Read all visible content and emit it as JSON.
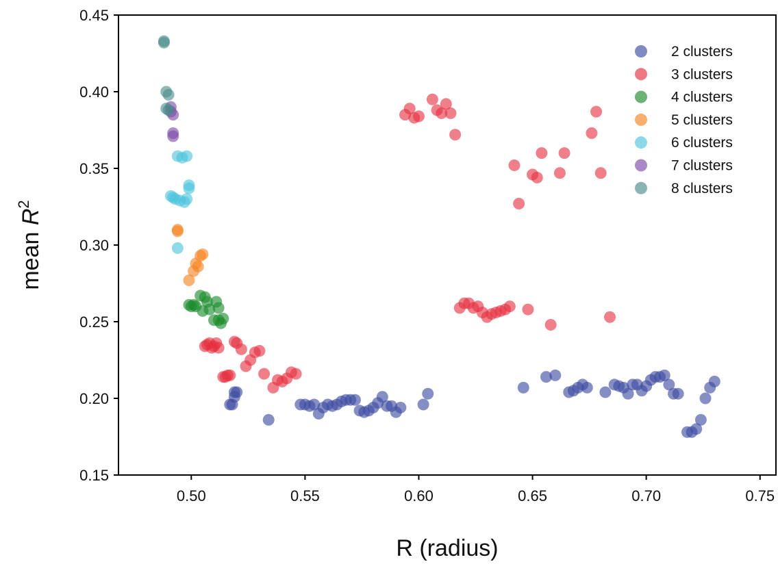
{
  "chart_data": {
    "type": "scatter",
    "title": "",
    "xlabel": "R (radius)",
    "ylabel_main": "mean ",
    "ylabel_var": "R",
    "ylabel_sup": "2",
    "xlim": [
      0.468,
      0.757
    ],
    "ylim": [
      0.15,
      0.45
    ],
    "xticks": [
      0.5,
      0.55,
      0.6,
      0.65,
      0.7,
      0.75
    ],
    "xtick_labels": [
      "0.50",
      "0.55",
      "0.60",
      "0.65",
      "0.70",
      "0.75"
    ],
    "yticks": [
      0.15,
      0.2,
      0.25,
      0.3,
      0.35,
      0.4,
      0.45
    ],
    "ytick_labels": [
      "0.15",
      "0.20",
      "0.25",
      "0.30",
      "0.35",
      "0.40",
      "0.45"
    ],
    "grid": false,
    "legend_position": "top-right",
    "series": [
      {
        "name": "2 clusters",
        "color": "#3b4ba0",
        "points": [
          [
            0.517,
            0.196
          ],
          [
            0.518,
            0.196
          ],
          [
            0.519,
            0.201
          ],
          [
            0.519,
            0.204
          ],
          [
            0.52,
            0.204
          ],
          [
            0.534,
            0.186
          ],
          [
            0.548,
            0.196
          ],
          [
            0.55,
            0.196
          ],
          [
            0.552,
            0.195
          ],
          [
            0.554,
            0.196
          ],
          [
            0.556,
            0.19
          ],
          [
            0.558,
            0.194
          ],
          [
            0.56,
            0.196
          ],
          [
            0.562,
            0.195
          ],
          [
            0.564,
            0.196
          ],
          [
            0.566,
            0.198
          ],
          [
            0.568,
            0.199
          ],
          [
            0.57,
            0.199
          ],
          [
            0.572,
            0.199
          ],
          [
            0.574,
            0.192
          ],
          [
            0.576,
            0.191
          ],
          [
            0.578,
            0.192
          ],
          [
            0.58,
            0.194
          ],
          [
            0.582,
            0.197
          ],
          [
            0.584,
            0.201
          ],
          [
            0.586,
            0.195
          ],
          [
            0.588,
            0.195
          ],
          [
            0.59,
            0.191
          ],
          [
            0.592,
            0.194
          ],
          [
            0.602,
            0.196
          ],
          [
            0.604,
            0.203
          ],
          [
            0.646,
            0.207
          ],
          [
            0.656,
            0.214
          ],
          [
            0.66,
            0.215
          ],
          [
            0.666,
            0.204
          ],
          [
            0.668,
            0.205
          ],
          [
            0.67,
            0.207
          ],
          [
            0.672,
            0.209
          ],
          [
            0.674,
            0.207
          ],
          [
            0.682,
            0.204
          ],
          [
            0.686,
            0.209
          ],
          [
            0.688,
            0.208
          ],
          [
            0.69,
            0.207
          ],
          [
            0.692,
            0.203
          ],
          [
            0.694,
            0.209
          ],
          [
            0.696,
            0.209
          ],
          [
            0.698,
            0.205
          ],
          [
            0.7,
            0.208
          ],
          [
            0.702,
            0.212
          ],
          [
            0.704,
            0.214
          ],
          [
            0.706,
            0.214
          ],
          [
            0.708,
            0.215
          ],
          [
            0.71,
            0.209
          ],
          [
            0.712,
            0.203
          ],
          [
            0.714,
            0.203
          ],
          [
            0.718,
            0.178
          ],
          [
            0.72,
            0.178
          ],
          [
            0.722,
            0.18
          ],
          [
            0.724,
            0.186
          ],
          [
            0.726,
            0.2
          ],
          [
            0.728,
            0.207
          ],
          [
            0.73,
            0.211
          ]
        ]
      },
      {
        "name": "3 clusters",
        "color": "#e53040",
        "points": [
          [
            0.506,
            0.234
          ],
          [
            0.507,
            0.235
          ],
          [
            0.508,
            0.236
          ],
          [
            0.509,
            0.233
          ],
          [
            0.51,
            0.234
          ],
          [
            0.511,
            0.236
          ],
          [
            0.512,
            0.233
          ],
          [
            0.514,
            0.214
          ],
          [
            0.515,
            0.214
          ],
          [
            0.516,
            0.215
          ],
          [
            0.517,
            0.215
          ],
          [
            0.519,
            0.237
          ],
          [
            0.52,
            0.236
          ],
          [
            0.522,
            0.232
          ],
          [
            0.524,
            0.221
          ],
          [
            0.526,
            0.225
          ],
          [
            0.528,
            0.23
          ],
          [
            0.53,
            0.231
          ],
          [
            0.532,
            0.216
          ],
          [
            0.536,
            0.207
          ],
          [
            0.538,
            0.212
          ],
          [
            0.54,
            0.211
          ],
          [
            0.542,
            0.213
          ],
          [
            0.544,
            0.217
          ],
          [
            0.546,
            0.216
          ],
          [
            0.594,
            0.385
          ],
          [
            0.596,
            0.389
          ],
          [
            0.598,
            0.383
          ],
          [
            0.6,
            0.384
          ],
          [
            0.606,
            0.395
          ],
          [
            0.608,
            0.388
          ],
          [
            0.61,
            0.386
          ],
          [
            0.612,
            0.392
          ],
          [
            0.614,
            0.386
          ],
          [
            0.616,
            0.372
          ],
          [
            0.618,
            0.259
          ],
          [
            0.62,
            0.262
          ],
          [
            0.622,
            0.262
          ],
          [
            0.624,
            0.259
          ],
          [
            0.626,
            0.26
          ],
          [
            0.628,
            0.256
          ],
          [
            0.63,
            0.253
          ],
          [
            0.632,
            0.255
          ],
          [
            0.634,
            0.256
          ],
          [
            0.636,
            0.257
          ],
          [
            0.638,
            0.258
          ],
          [
            0.64,
            0.26
          ],
          [
            0.642,
            0.352
          ],
          [
            0.644,
            0.327
          ],
          [
            0.648,
            0.258
          ],
          [
            0.65,
            0.346
          ],
          [
            0.652,
            0.344
          ],
          [
            0.654,
            0.36
          ],
          [
            0.658,
            0.248
          ],
          [
            0.662,
            0.347
          ],
          [
            0.664,
            0.36
          ],
          [
            0.676,
            0.373
          ],
          [
            0.678,
            0.387
          ],
          [
            0.68,
            0.347
          ],
          [
            0.684,
            0.253
          ]
        ]
      },
      {
        "name": "4 clusters",
        "color": "#1a8a2a",
        "points": [
          [
            0.499,
            0.261
          ],
          [
            0.5,
            0.26
          ],
          [
            0.501,
            0.261
          ],
          [
            0.502,
            0.26
          ],
          [
            0.504,
            0.267
          ],
          [
            0.505,
            0.257
          ],
          [
            0.506,
            0.266
          ],
          [
            0.507,
            0.263
          ],
          [
            0.508,
            0.258
          ],
          [
            0.51,
            0.251
          ],
          [
            0.511,
            0.263
          ],
          [
            0.512,
            0.251
          ],
          [
            0.512,
            0.259
          ],
          [
            0.513,
            0.249
          ],
          [
            0.514,
            0.252
          ]
        ]
      },
      {
        "name": "5 clusters",
        "color": "#f58220",
        "points": [
          [
            0.494,
            0.31
          ],
          [
            0.494,
            0.309
          ],
          [
            0.499,
            0.277
          ],
          [
            0.501,
            0.283
          ],
          [
            0.502,
            0.288
          ],
          [
            0.503,
            0.286
          ],
          [
            0.504,
            0.293
          ],
          [
            0.505,
            0.294
          ]
        ]
      },
      {
        "name": "6 clusters",
        "color": "#4cc3dc",
        "points": [
          [
            0.491,
            0.332
          ],
          [
            0.492,
            0.331
          ],
          [
            0.493,
            0.33
          ],
          [
            0.494,
            0.298
          ],
          [
            0.494,
            0.358
          ],
          [
            0.495,
            0.329
          ],
          [
            0.496,
            0.357
          ],
          [
            0.497,
            0.328
          ],
          [
            0.498,
            0.358
          ],
          [
            0.498,
            0.33
          ],
          [
            0.499,
            0.337
          ],
          [
            0.499,
            0.339
          ]
        ]
      },
      {
        "name": "7 clusters",
        "color": "#7b4aa8",
        "points": [
          [
            0.491,
            0.39
          ],
          [
            0.492,
            0.385
          ],
          [
            0.492,
            0.373
          ],
          [
            0.492,
            0.371
          ],
          [
            0.491,
            0.387
          ]
        ]
      },
      {
        "name": "8 clusters",
        "color": "#4a8c8a",
        "points": [
          [
            0.488,
            0.433
          ],
          [
            0.488,
            0.432
          ],
          [
            0.489,
            0.4
          ],
          [
            0.49,
            0.398
          ],
          [
            0.489,
            0.389
          ],
          [
            0.49,
            0.388
          ]
        ]
      }
    ]
  }
}
